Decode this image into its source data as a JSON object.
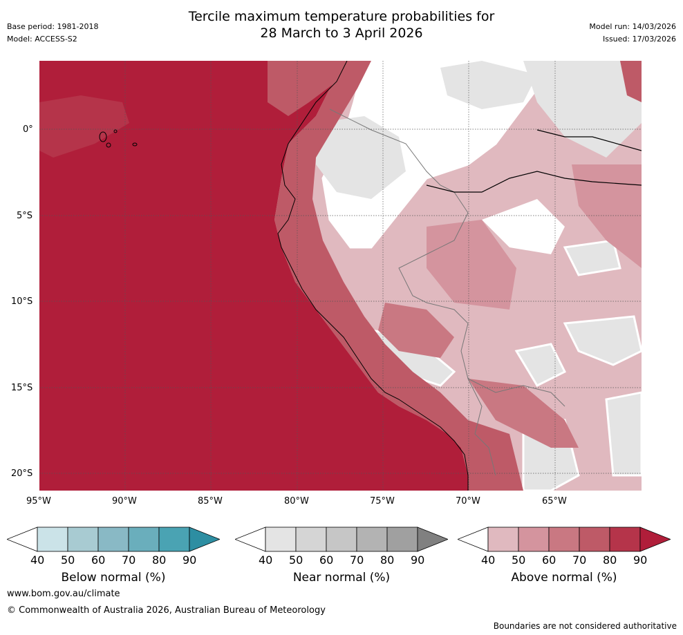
{
  "header": {
    "title_line1": "Tercile maximum temperature probabilities for",
    "title_line2": "28 March to 3 April 2026",
    "base_period": "Base period: 1981-2018",
    "model": "Model: ACCESS-S2",
    "model_run": "Model run: 14/03/2026",
    "issued": "Issued: 17/03/2026"
  },
  "map": {
    "lon_labels": [
      "95°W",
      "90°W",
      "85°W",
      "80°W",
      "75°W",
      "70°W",
      "65°W"
    ],
    "lat_labels": [
      "0°",
      "5°S",
      "10°S",
      "15°S",
      "20°S"
    ]
  },
  "legends": {
    "below": {
      "title": "Below normal (%)",
      "ticks": [
        "40",
        "50",
        "60",
        "70",
        "80",
        "90"
      ],
      "colors": [
        "#ffffff",
        "#cbe3e8",
        "#a8cbd2",
        "#89b9c5",
        "#6aaebc",
        "#4aa3b3",
        "#2d8ea2"
      ]
    },
    "near": {
      "title": "Near normal (%)",
      "ticks": [
        "40",
        "50",
        "60",
        "70",
        "80",
        "90"
      ],
      "colors": [
        "#ffffff",
        "#e4e4e4",
        "#d5d5d5",
        "#c6c6c6",
        "#b3b3b3",
        "#a0a0a0",
        "#808080"
      ]
    },
    "above": {
      "title": "Above normal (%)",
      "ticks": [
        "40",
        "50",
        "60",
        "70",
        "80",
        "90"
      ],
      "colors": [
        "#ffffff",
        "#e0b9bf",
        "#d4949e",
        "#c97882",
        "#be5a67",
        "#b5344a",
        "#b01e3a"
      ]
    }
  },
  "footer": {
    "url": "www.bom.gov.au/climate",
    "copyright": "© Commonwealth of Australia 2026, Australian Bureau of Meteorology",
    "disclaimer": "Boundaries are not considered authoritative"
  }
}
